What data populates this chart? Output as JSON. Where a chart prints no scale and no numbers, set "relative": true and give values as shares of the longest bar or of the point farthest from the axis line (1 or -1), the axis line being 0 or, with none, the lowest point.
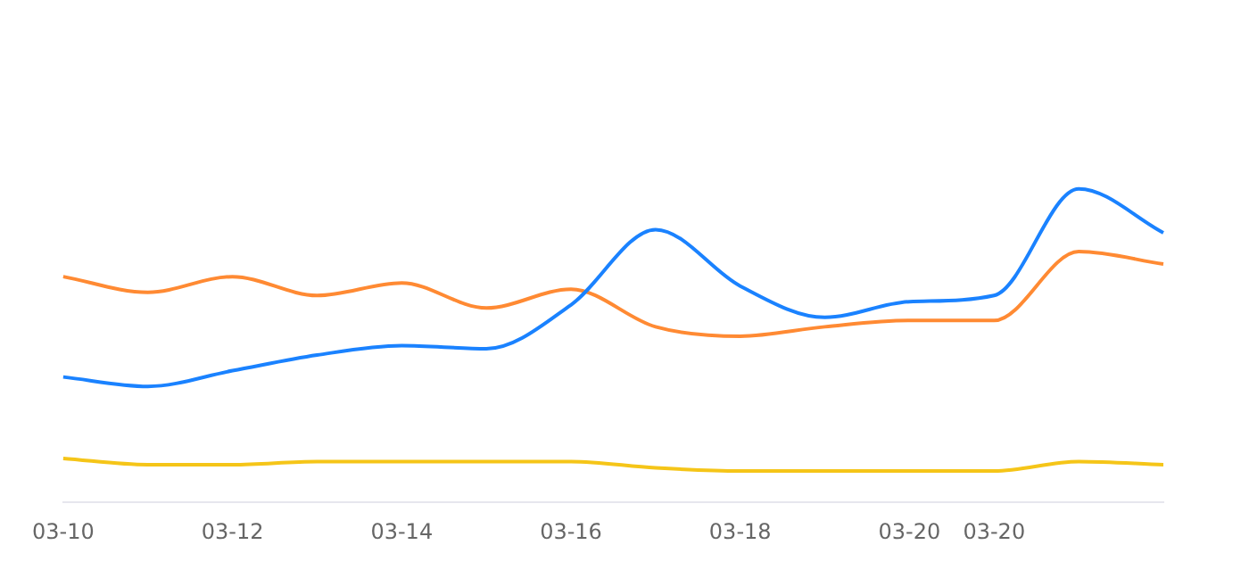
{
  "chart_data": {
    "type": "line",
    "relative": true,
    "legend": false,
    "marker": "none",
    "line_style": "solid",
    "categories": [
      "03-10",
      null,
      "03-12",
      null,
      "03-14",
      null,
      "03-16",
      null,
      "03-18",
      null,
      "03-20",
      "03-20",
      null,
      null
    ],
    "series": [
      {
        "color": "#1a82ff",
        "values": [
          0.4,
          0.37,
          0.42,
          0.47,
          0.5,
          0.49,
          0.63,
          0.87,
          0.69,
          0.59,
          0.64,
          0.66,
          1.0,
          0.86
        ]
      },
      {
        "color": "#ff8a33",
        "values": [
          0.72,
          0.67,
          0.72,
          0.66,
          0.7,
          0.62,
          0.68,
          0.56,
          0.53,
          0.56,
          0.58,
          0.58,
          0.8,
          0.76
        ]
      },
      {
        "color": "#f5c518",
        "values": [
          0.14,
          0.12,
          0.12,
          0.13,
          0.13,
          0.13,
          0.13,
          0.11,
          0.1,
          0.1,
          0.1,
          0.1,
          0.13,
          0.12
        ]
      }
    ]
  }
}
